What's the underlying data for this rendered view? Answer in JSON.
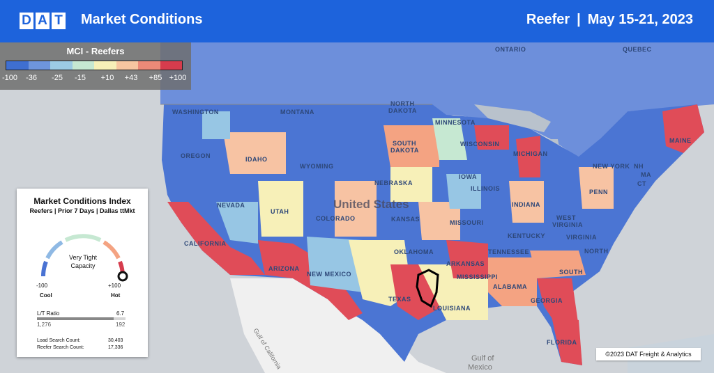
{
  "header": {
    "logo_letters": [
      "D",
      "A",
      "T"
    ],
    "title": "Market Conditions",
    "equipment": "Reefer",
    "separator": "|",
    "date_range": "May 15-21, 2023"
  },
  "legend": {
    "title": "MCI - Reefers",
    "ticks": [
      "-100",
      "-36",
      "-25",
      "-15",
      "+10",
      "+43",
      "+85",
      "+100"
    ],
    "colors": [
      "#3f6fd0",
      "#6e95dc",
      "#9ccbe4",
      "#c6e8d2",
      "#f7f0b8",
      "#f7c6a0",
      "#ec8a78",
      "#d63c4d"
    ]
  },
  "panel": {
    "title": "Market Conditions Index",
    "subtitle": "Reefers | Prior 7 Days | Dallas ttMkt",
    "gauge_status_line1": "Very Tight",
    "gauge_status_line2": "Capacity",
    "gauge_min": "-100",
    "gauge_max": "+100",
    "gauge_min_label": "Cool",
    "gauge_max_label": "Hot",
    "gauge_value_fraction": 1.0,
    "lt_label": "L/T Ratio",
    "lt_ratio": "6.7",
    "loads": "1,276",
    "trucks": "192",
    "load_search_label": "Load Search Count:",
    "load_search_value": "30,403",
    "reefer_search_label": "Reefer Search Count:",
    "reefer_search_value": "17,336"
  },
  "map_labels": {
    "ontario": "ONTARIO",
    "quebec": "QUEBEC",
    "washington": "WASHINGTON",
    "montana": "MONTANA",
    "north_dakota_1": "NORTH",
    "north_dakota_2": "DAKOTA",
    "minnesota": "MINNESOTA",
    "oregon": "OREGON",
    "idaho": "IDAHO",
    "south_dakota_1": "SOUTH",
    "south_dakota_2": "DAKOTA",
    "wisconsin": "WISCONSIN",
    "michigan": "MICHIGAN",
    "maine": "MAINE",
    "new_york": "NEW YORK",
    "wyoming": "WYOMING",
    "nebraska": "NEBRASKA",
    "iowa": "IOWA",
    "illinois": "ILLINOIS",
    "nevada": "NEVADA",
    "utah": "UTAH",
    "colorado": "COLORADO",
    "kansas": "KANSAS",
    "missouri": "MISSOURI",
    "indiana": "INDIANA",
    "pennsylvania": "PENN",
    "nh": "NH",
    "ma": "MA",
    "ct": "CT",
    "california": "CALIFORNIA",
    "west_virginia_1": "WEST",
    "west_virginia_2": "VIRGINIA",
    "virginia": "VIRGINIA",
    "kentucky": "KENTUCKY",
    "tennessee": "TENNESSEE",
    "north_carolina": "NORTH",
    "arizona": "ARIZONA",
    "new_mexico": "NEW MEXICO",
    "oklahoma": "OKLAHOMA",
    "arkansas": "ARKANSAS",
    "south_carolina": "SOUTH",
    "mississippi": "MISSISSIPPI",
    "alabama": "ALABAMA",
    "georgia": "GEORGIA",
    "texas": "TEXAS",
    "louisiana": "LOUISIANA",
    "florida": "FLORIDA",
    "united_states": "United States",
    "gulf_california": "Gulf of California",
    "gulf_mexico_1": "Gulf of",
    "gulf_mexico_2": "Mexico"
  },
  "copyright": "©2023 DAT Freight & Analytics"
}
